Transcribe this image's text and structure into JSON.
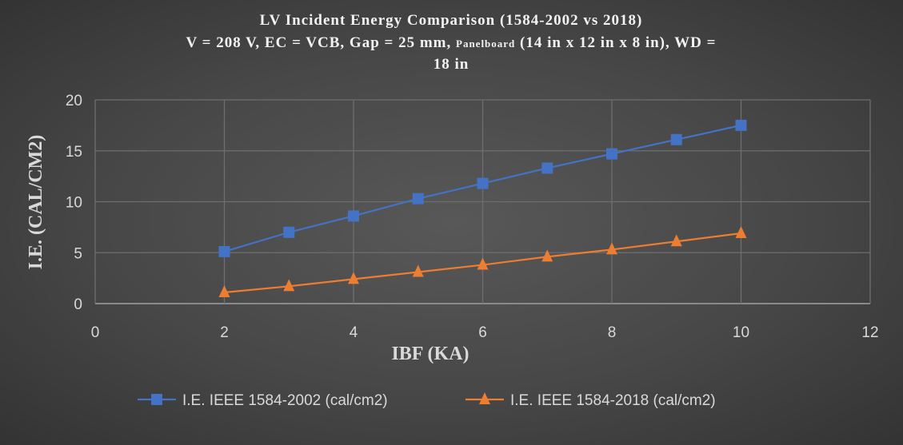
{
  "chart_data": {
    "type": "line",
    "title_lines": [
      "LV Incident Energy Comparison (1584-2002 vs 2018)",
      "V = 208 V, EC = VCB, Gap = 25 mm, ",
      "Panelboard",
      " (14 in x 12 in x 8 in), WD =",
      "18 in"
    ],
    "xlabel": "IBF (KA)",
    "ylabel": "I.E. (CAL/CM2)",
    "xlim": [
      0,
      12
    ],
    "ylim": [
      0,
      20
    ],
    "xticks": [
      "0",
      "2",
      "4",
      "6",
      "8",
      "10",
      "12"
    ],
    "yticks": [
      "0",
      "5",
      "10",
      "15",
      "20"
    ],
    "grid": true,
    "legend_position": "bottom",
    "x": [
      2,
      3,
      4,
      5,
      6,
      7,
      8,
      9,
      10
    ],
    "series": [
      {
        "name": "I.E. IEEE 1584-2002 (cal/cm2)",
        "color": "#4472c4",
        "marker": "square",
        "values": [
          5.1,
          7.0,
          8.6,
          10.3,
          11.8,
          13.3,
          14.7,
          16.1,
          17.5
        ]
      },
      {
        "name": "I.E. IEEE 1584-2018 (cal/cm2)",
        "color": "#ed7d31",
        "marker": "triangle",
        "values": [
          1.1,
          1.7,
          2.4,
          3.1,
          3.8,
          4.6,
          5.3,
          6.1,
          6.9
        ]
      }
    ]
  }
}
